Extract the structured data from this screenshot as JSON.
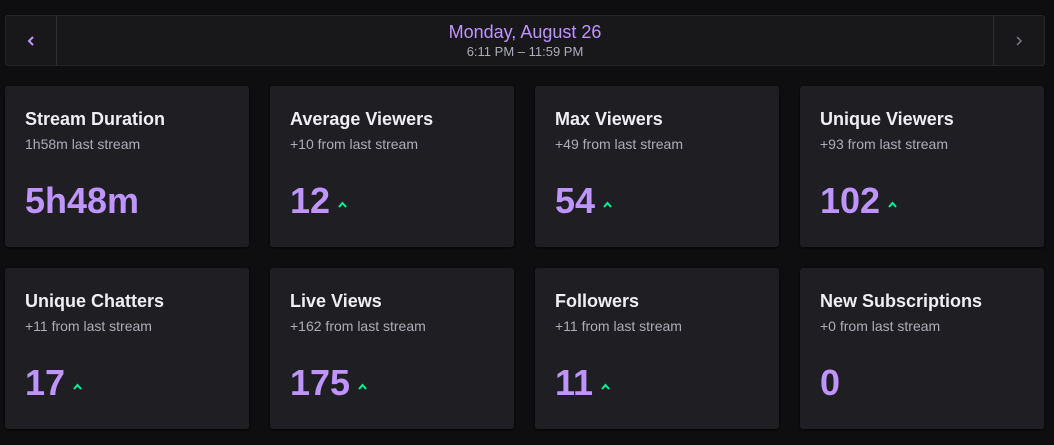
{
  "header": {
    "title": "Monday, August 26",
    "time_range": "6:11 PM – 11:59 PM"
  },
  "cards": [
    {
      "title": "Stream Duration",
      "subtitle": "1h58m last stream",
      "value": "5h48m"
    },
    {
      "title": "Average Viewers",
      "subtitle": "+10 from last stream",
      "value": "12"
    },
    {
      "title": "Max Viewers",
      "subtitle": "+49 from last stream",
      "value": "54"
    },
    {
      "title": "Unique Viewers",
      "subtitle": "+93 from last stream",
      "value": "102"
    },
    {
      "title": "Unique Chatters",
      "subtitle": "+11 from last stream",
      "value": "17"
    },
    {
      "title": "Live Views",
      "subtitle": "+162 from last stream",
      "value": "175"
    },
    {
      "title": "Followers",
      "subtitle": "+11 from last stream",
      "value": "11"
    },
    {
      "title": "New Subscriptions",
      "subtitle": "+0 from last stream",
      "value": "0"
    }
  ]
}
